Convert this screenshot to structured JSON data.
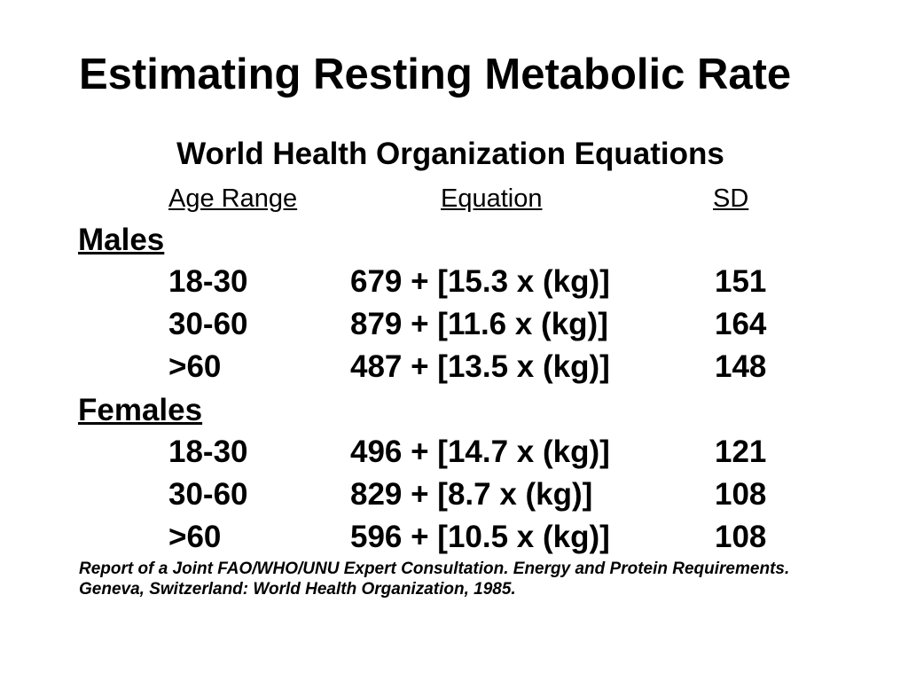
{
  "slide": {
    "title": "Estimating Resting Metabolic Rate",
    "subtitle": "World Health Organization Equations",
    "columns": {
      "age_range": "Age Range",
      "equation": "Equation",
      "sd": "SD"
    },
    "groups": [
      {
        "label": "Males",
        "rows": [
          {
            "age": "18-30",
            "equation": "679 + [15.3 x (kg)]",
            "sd": "151"
          },
          {
            "age": "30-60",
            "equation": "879 + [11.6 x (kg)]",
            "sd": "164"
          },
          {
            "age": ">60",
            "equation": "487 + [13.5 x (kg)]",
            "sd": "148"
          }
        ]
      },
      {
        "label": "Females",
        "rows": [
          {
            "age": "18-30",
            "equation": "496 + [14.7 x (kg)]",
            "sd": "121"
          },
          {
            "age": "30-60",
            "equation": "829 + [8.7 x (kg)]",
            "sd": "108"
          },
          {
            "age": ">60",
            "equation": "596 + [10.5 x (kg)]",
            "sd": "108"
          }
        ]
      }
    ],
    "citation": "Report of a Joint FAO/WHO/UNU Expert Consultation. Energy and Protein Requirements. Geneva, Switzerland: World Health Organization, 1985."
  }
}
